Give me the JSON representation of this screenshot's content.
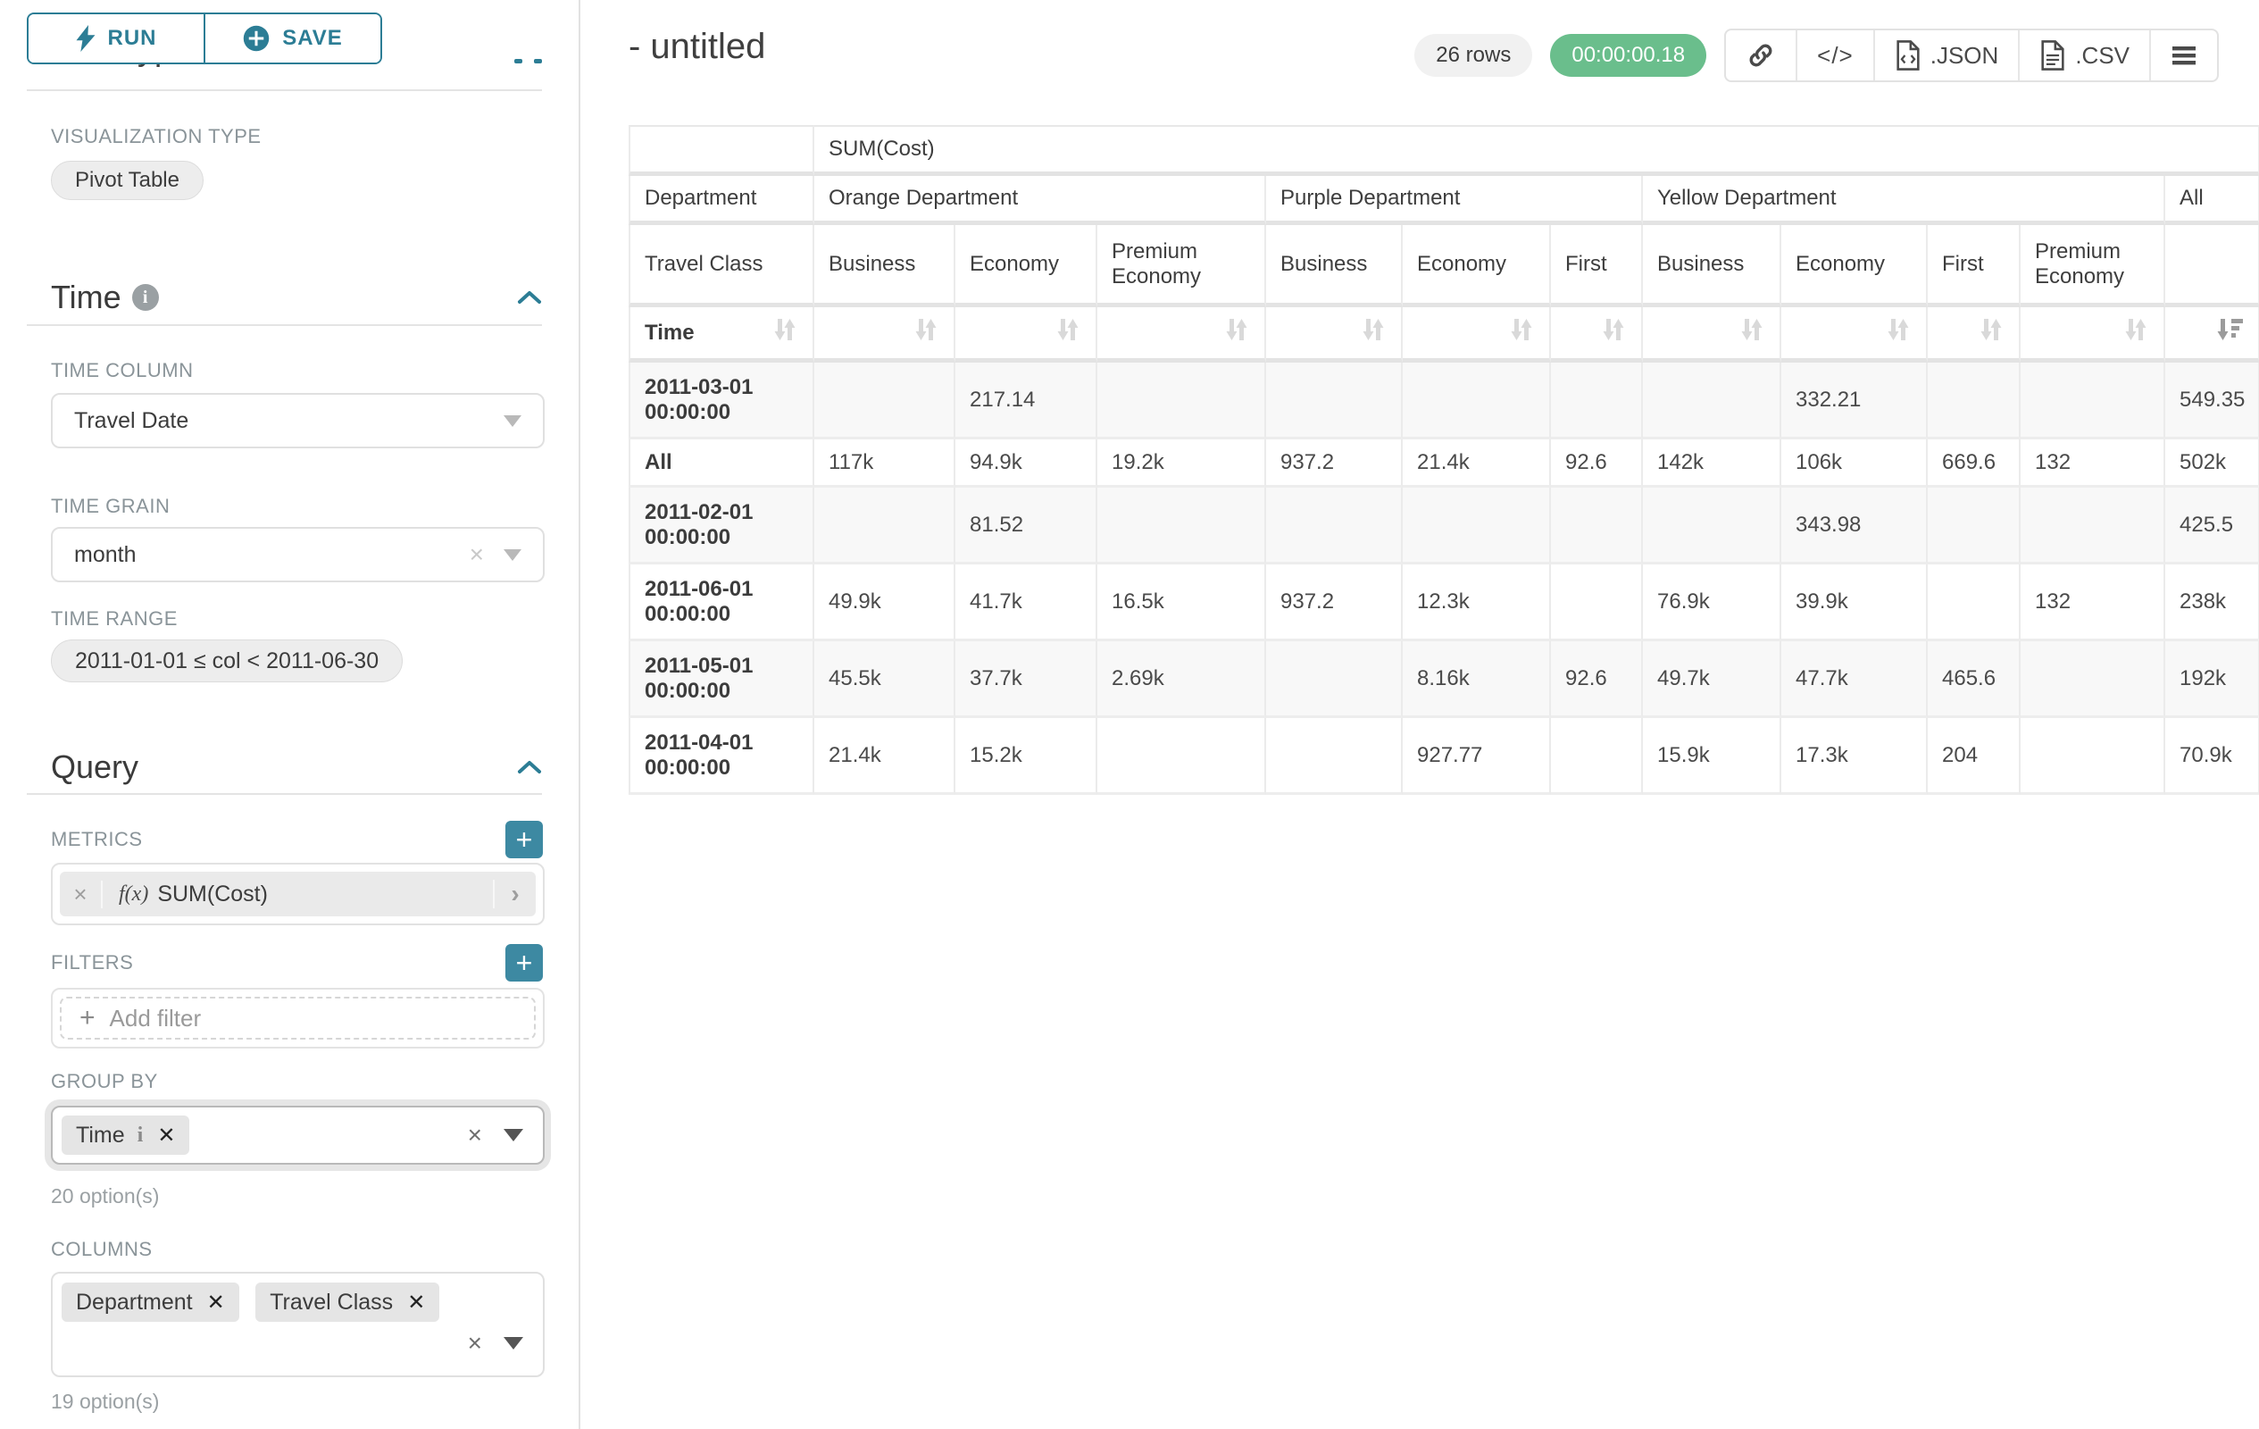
{
  "sidebar": {
    "run_label": "RUN",
    "save_label": "SAVE",
    "chart_type_heading": "Chart Type",
    "viz_type_label": "VISUALIZATION TYPE",
    "viz_type_value": "Pivot Table",
    "time_section_title": "Time",
    "time_column_label": "TIME COLUMN",
    "time_column_value": "Travel Date",
    "time_grain_label": "TIME GRAIN",
    "time_grain_value": "month",
    "time_range_label": "TIME RANGE",
    "time_range_value": "2011-01-01 ≤ col < 2011-06-30",
    "query_section_title": "Query",
    "metrics_label": "METRICS",
    "metric_fx": "f(x)",
    "metric_value": "SUM(Cost)",
    "filters_label": "FILTERS",
    "add_filter_label": "Add filter",
    "group_by_label": "GROUP BY",
    "group_by_pill": "Time",
    "group_by_options": "20 option(s)",
    "columns_label": "COLUMNS",
    "columns_pills": [
      "Department",
      "Travel Class"
    ],
    "columns_options": "19 option(s)"
  },
  "header": {
    "title": "- untitled",
    "row_count": "26 rows",
    "timer": "00:00:00.18",
    "json_label": ".JSON",
    "csv_label": ".CSV",
    "code_glyph": "</>"
  },
  "colors": {
    "accent_teal": "#2c7d95",
    "plus_button_teal": "#3d89a2",
    "timer_green": "#6abe8c",
    "stripe_gray": "#f8f8f8"
  },
  "chart_data": {
    "type": "table",
    "metric_header": "SUM(Cost)",
    "corner_row_department": "Department",
    "corner_row_travel_class": "Travel Class",
    "corner_row_time": "Time",
    "col_groups": [
      {
        "label": "Orange Department",
        "children": [
          "Business",
          "Economy",
          "Premium Economy"
        ]
      },
      {
        "label": "Purple Department",
        "children": [
          "Business",
          "Economy",
          "First"
        ]
      },
      {
        "label": "Yellow Department",
        "children": [
          "Business",
          "Economy",
          "First",
          "Premium Economy"
        ]
      },
      {
        "label": "All",
        "children": [
          ""
        ]
      }
    ],
    "value_column_count": 11,
    "sort": {
      "column": "All",
      "direction": "descending"
    },
    "rows": [
      {
        "label": "2011-03-01 00:00:00",
        "values": [
          "",
          "217.14",
          "",
          "",
          "",
          "",
          "",
          "332.21",
          "",
          "",
          "549.35"
        ]
      },
      {
        "label": "All",
        "values": [
          "117k",
          "94.9k",
          "19.2k",
          "937.2",
          "21.4k",
          "92.6",
          "142k",
          "106k",
          "669.6",
          "132",
          "502k"
        ]
      },
      {
        "label": "2011-02-01 00:00:00",
        "values": [
          "",
          "81.52",
          "",
          "",
          "",
          "",
          "",
          "343.98",
          "",
          "",
          "425.5"
        ]
      },
      {
        "label": "2011-06-01 00:00:00",
        "values": [
          "49.9k",
          "41.7k",
          "16.5k",
          "937.2",
          "12.3k",
          "",
          "76.9k",
          "39.9k",
          "",
          "132",
          "238k"
        ]
      },
      {
        "label": "2011-05-01 00:00:00",
        "values": [
          "45.5k",
          "37.7k",
          "2.69k",
          "",
          "8.16k",
          "92.6",
          "49.7k",
          "47.7k",
          "465.6",
          "",
          "192k"
        ]
      },
      {
        "label": "2011-04-01 00:00:00",
        "values": [
          "21.4k",
          "15.2k",
          "",
          "",
          "927.77",
          "",
          "15.9k",
          "17.3k",
          "204",
          "",
          "70.9k"
        ]
      }
    ]
  }
}
